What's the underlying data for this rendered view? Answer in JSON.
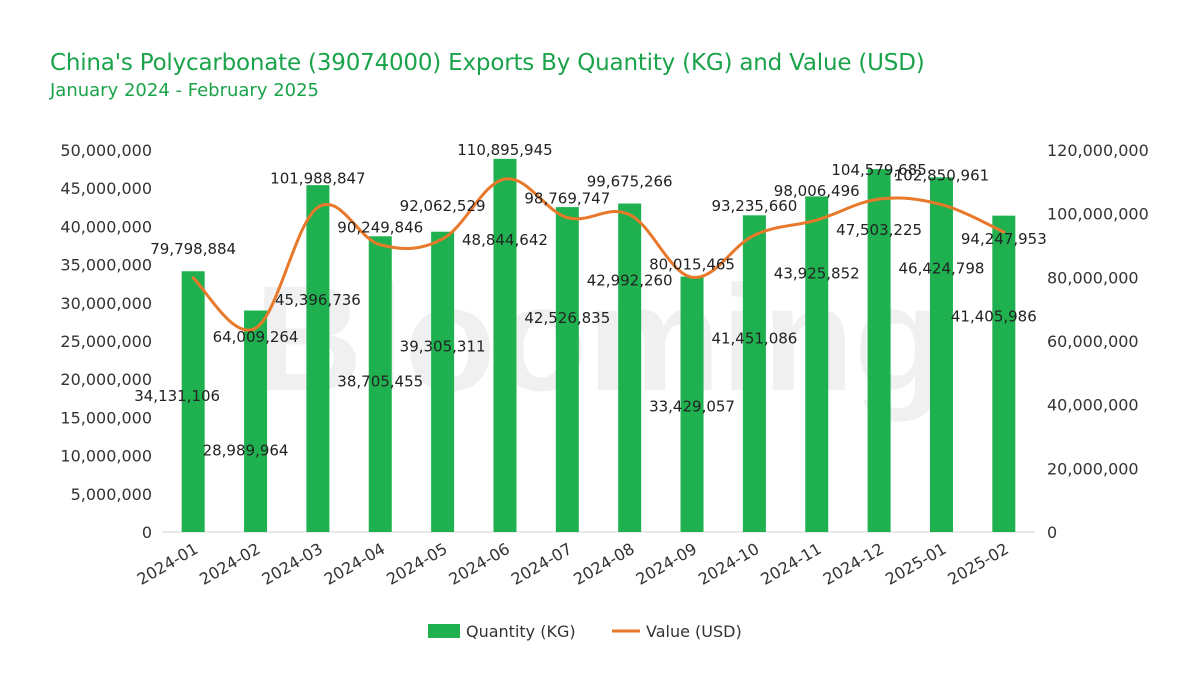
{
  "chart_data": {
    "type": "bar+line",
    "title": "China's Polycarbonate (39074000) Exports By Quantity (KG) and Value (USD)",
    "subtitle": "January 2024 - February 2025",
    "watermark": "Blooming",
    "categories": [
      "2024-01",
      "2024-02",
      "2024-03",
      "2024-04",
      "2024-05",
      "2024-06",
      "2024-07",
      "2024-08",
      "2024-09",
      "2024-10",
      "2024-11",
      "2024-12",
      "2025-01",
      "2025-02"
    ],
    "series": [
      {
        "name": "Quantity (KG)",
        "type": "bar",
        "axis": "left",
        "values": [
          34131106,
          28989964,
          45396736,
          38705455,
          39305311,
          48844642,
          42526835,
          42992260,
          33429057,
          41451086,
          43925852,
          47503225,
          46424798,
          41405986
        ],
        "labels": [
          "34,131,106",
          "28,989,964",
          "45,396,736",
          "38,705,455",
          "39,305,311",
          "48,844,642",
          "42,526,835",
          "42,992,260",
          "33,429,057",
          "41,451,086",
          "43,925,852",
          "47,503,225",
          "46,424,798",
          "41,405,986"
        ]
      },
      {
        "name": "Value (USD)",
        "type": "line",
        "axis": "right",
        "values": [
          79798884,
          64009264,
          101988847,
          90249846,
          92062529,
          110895945,
          98769747,
          99675266,
          80015465,
          93235660,
          98006496,
          104579685,
          102850961,
          94247953
        ],
        "labels": [
          "79,798,884",
          "64,009,264",
          "101,988,847",
          "90,249,846",
          "92,062,529",
          "110,895,945",
          "98,769,747",
          "99,675,266",
          "80,015,465",
          "93,235,660",
          "98,006,496",
          "104,579,685",
          "102,850,961",
          "94,247,953"
        ]
      }
    ],
    "left_axis": {
      "range": [
        0,
        50000000
      ],
      "ticks": [
        0,
        5000000,
        10000000,
        15000000,
        20000000,
        25000000,
        30000000,
        35000000,
        40000000,
        45000000,
        50000000
      ],
      "tick_labels": [
        "0",
        "5,000,000",
        "10,000,000",
        "15,000,000",
        "20,000,000",
        "25,000,000",
        "30,000,000",
        "35,000,000",
        "40,000,000",
        "45,000,000",
        "50,000,000"
      ]
    },
    "right_axis": {
      "range": [
        0,
        120000000
      ],
      "ticks": [
        0,
        20000000,
        40000000,
        60000000,
        80000000,
        100000000,
        120000000
      ],
      "tick_labels": [
        "0",
        "20,000,000",
        "40,000,000",
        "60,000,000",
        "80,000,000",
        "100,000,000",
        "120,000,000"
      ]
    },
    "grid": false,
    "legend": "bottom-center",
    "colors": {
      "bar": "#1fb14f",
      "line": "#e8782a",
      "title": "#1aa34a"
    }
  }
}
